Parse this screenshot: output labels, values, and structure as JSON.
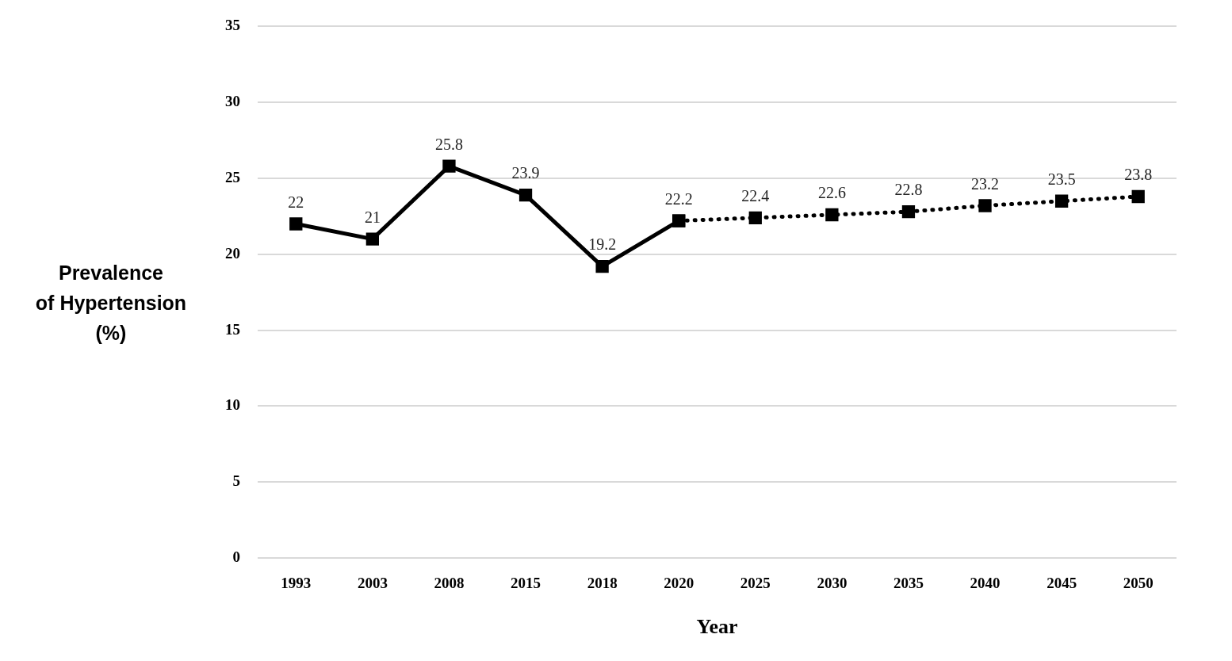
{
  "chart_data": {
    "type": "line",
    "y_label": [
      "Prevalence",
      "of Hypertension",
      "(%)"
    ],
    "x_label": "Year",
    "categories": [
      "1993",
      "2003",
      "2008",
      "2015",
      "2018",
      "2020",
      "2025",
      "2030",
      "2035",
      "2040",
      "2045",
      "2050"
    ],
    "series": [
      {
        "color": "#000000",
        "line_style": "solid",
        "marker": "square",
        "values": [
          22,
          21,
          25.8,
          23.9,
          19.2,
          22.2,
          null,
          null,
          null,
          null,
          null,
          null
        ]
      },
      {
        "color": "#000000",
        "line_style": "dotted",
        "marker": "square",
        "values": [
          null,
          null,
          null,
          null,
          null,
          22.2,
          22.4,
          22.6,
          22.8,
          23.2,
          23.5,
          23.8
        ]
      }
    ],
    "ylim": [
      0,
      35
    ],
    "yticks": [
      0,
      5,
      10,
      15,
      20,
      25,
      30,
      35
    ],
    "grid": true,
    "data_labels": true
  }
}
